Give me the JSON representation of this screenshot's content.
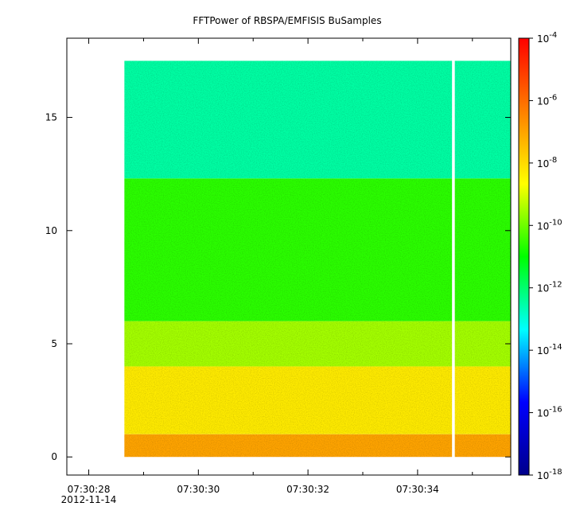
{
  "chart_data": {
    "type": "heatmap",
    "title": "FFTPower of RBSPA/EMFISIS  BuSamples",
    "xlabel": "",
    "ylabel": "",
    "x_axis": {
      "type": "time",
      "range": [
        "07:30:27.6",
        "07:30:35.7"
      ],
      "ticks": [
        {
          "t": 28,
          "label": "07:30:28",
          "sublabel": "2012-11-14"
        },
        {
          "t": 30,
          "label": "07:30:30"
        },
        {
          "t": 32,
          "label": "07:30:32"
        },
        {
          "t": 34,
          "label": "07:30:34"
        }
      ],
      "minor_ticks": [
        29,
        31,
        33,
        35
      ]
    },
    "y_axis": {
      "range": [
        -0.8,
        18.5
      ],
      "ticks": [
        {
          "value": 0,
          "label": "0"
        },
        {
          "value": 5,
          "label": "5"
        },
        {
          "value": 10,
          "label": "10"
        },
        {
          "value": 15,
          "label": "15"
        }
      ]
    },
    "data_extent": {
      "t_start": 28.65,
      "t_end": 35.7,
      "y_min": 0,
      "y_max": 17.5,
      "gap_t": 34.65
    },
    "colorbar": {
      "scale": "log",
      "range": [
        1e-18,
        0.0001
      ],
      "ticks": [
        {
          "exp": -4,
          "label": "10",
          "sup": "-4"
        },
        {
          "exp": -6,
          "label": "10",
          "sup": "-6"
        },
        {
          "exp": -8,
          "label": "10",
          "sup": "-8"
        },
        {
          "exp": -10,
          "label": "10",
          "sup": "-10"
        },
        {
          "exp": -12,
          "label": "10",
          "sup": "-12"
        },
        {
          "exp": -14,
          "label": "10",
          "sup": "-14"
        },
        {
          "exp": -16,
          "label": "10",
          "sup": "-16"
        },
        {
          "exp": -18,
          "label": "10",
          "sup": "-18"
        }
      ],
      "colors": [
        "#00008b",
        "#0000ff",
        "#00ffff",
        "#00ff00",
        "#ffff00",
        "#ff7f00",
        "#ff0000"
      ]
    },
    "bands": [
      {
        "y_from": 12.3,
        "y_to": 17.5,
        "log_power": -12.5
      },
      {
        "y_from": 6.0,
        "y_to": 12.3,
        "log_power": -10.6
      },
      {
        "y_from": 4.0,
        "y_to": 6.0,
        "log_power": -9.5
      },
      {
        "y_from": 1.0,
        "y_to": 4.0,
        "log_power": -8.3
      },
      {
        "y_from": 0.0,
        "y_to": 1.0,
        "log_power": -7.0
      }
    ],
    "grid": false
  }
}
